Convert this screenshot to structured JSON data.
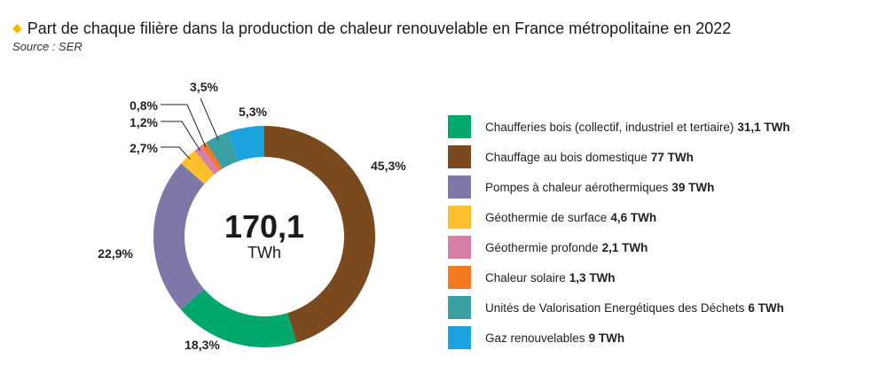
{
  "header": {
    "title": "Part de chaque filière dans la production de chaleur renouvelable en France métropolitaine en 2022",
    "source": "Source : SER"
  },
  "chart_data": {
    "type": "donut",
    "title": "Part de chaque filière dans la production de chaleur renouvelable en France métropolitaine en 2022",
    "center_value": "170,1",
    "center_unit": "TWh",
    "slices": [
      {
        "name": "Chauffage au bois domestique",
        "value": 77,
        "value_label": "77 TWh",
        "percent": 45.3,
        "percent_label": "45,3%",
        "color": "#7a4a1e"
      },
      {
        "name": "Chaufferies bois (collectif, industriel et tertiaire)",
        "value": 31.1,
        "value_label": "31,1 TWh",
        "percent": 18.3,
        "percent_label": "18,3%",
        "color": "#00a86b"
      },
      {
        "name": "Pompes à chaleur aérothermiques",
        "value": 39,
        "value_label": "39 TWh",
        "percent": 22.9,
        "percent_label": "22,9%",
        "color": "#7e77a8"
      },
      {
        "name": "Géothermie de surface",
        "value": 4.6,
        "value_label": "4,6 TWh",
        "percent": 2.7,
        "percent_label": "2,7%",
        "color": "#fdbf2d"
      },
      {
        "name": "Géothermie profonde",
        "value": 2.1,
        "value_label": "2,1 TWh",
        "percent": 1.2,
        "percent_label": "1,2%",
        "color": "#d67fa7"
      },
      {
        "name": "Chaleur solaire",
        "value": 1.3,
        "value_label": "1,3 TWh",
        "percent": 0.8,
        "percent_label": "0,8%",
        "color": "#f37a21"
      },
      {
        "name": "Unités de Valorisation Energétiques des Déchets",
        "value": 6,
        "value_label": "6 TWh",
        "percent": 3.5,
        "percent_label": "3,5%",
        "color": "#3aa0a3"
      },
      {
        "name": "Gaz renouvelables",
        "value": 9,
        "value_label": "9 TWh",
        "percent": 5.3,
        "percent_label": "5,3%",
        "color": "#1ba3e0"
      }
    ],
    "legend_order": [
      "Chaufferies bois (collectif, industriel et tertiaire)",
      "Chauffage au bois domestique",
      "Pompes à chaleur aérothermiques",
      "Géothermie de surface",
      "Géothermie profonde",
      "Chaleur solaire",
      "Unités de Valorisation Energétiques des Déchets",
      "Gaz renouvelables"
    ],
    "legend_placement": "right"
  }
}
